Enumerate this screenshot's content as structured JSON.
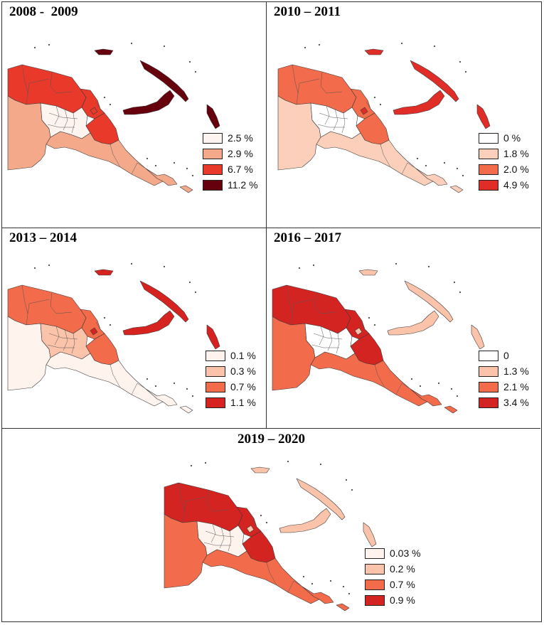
{
  "panels": [
    {
      "title": "2008 -  2009",
      "legend": [
        {
          "label": "2.5 %",
          "color": "#fdf3ef"
        },
        {
          "label": "2.9 %",
          "color": "#f4a98a"
        },
        {
          "label": "6.7 %",
          "color": "#e8392b"
        },
        {
          "label": "11.2 %",
          "color": "#67000d"
        }
      ],
      "regions": {
        "west": 2,
        "southwest": 1,
        "highlands": 0,
        "north": 2,
        "morobe": 2,
        "south": 1,
        "islands_west": 2,
        "new_britain": 3,
        "new_ireland": 3,
        "bougainville": 3,
        "manus": 3,
        "milne": 1
      }
    },
    {
      "title": "2010 – 2011",
      "legend": [
        {
          "label": "0 %",
          "color": "#ffffff"
        },
        {
          "label": "1.8 %",
          "color": "#fbcfba"
        },
        {
          "label": "2.0 %",
          "color": "#f26b4a"
        },
        {
          "label": "4.9 %",
          "color": "#e02d27"
        }
      ],
      "regions": {
        "west": 2,
        "southwest": 1,
        "highlands": 0,
        "north": 2,
        "morobe": 2,
        "south": 1,
        "islands_west": 3,
        "new_britain": 3,
        "new_ireland": 3,
        "bougainville": 3,
        "manus": 3,
        "milne": 1
      }
    },
    {
      "title": "2013 – 2014",
      "legend": [
        {
          "label": "0.1 %",
          "color": "#fff3ee"
        },
        {
          "label": "0.3 %",
          "color": "#fbc3a9"
        },
        {
          "label": "0.7 %",
          "color": "#f26b4a"
        },
        {
          "label": "1.1 %",
          "color": "#d7231f"
        }
      ],
      "regions": {
        "west": 2,
        "southwest": 0,
        "highlands": 1,
        "north": 2,
        "morobe": 2,
        "south": 0,
        "islands_west": 3,
        "new_britain": 3,
        "new_ireland": 3,
        "bougainville": 3,
        "manus": 3,
        "milne": 0
      }
    },
    {
      "title": "2016 – 2017",
      "legend": [
        {
          "label": "0",
          "color": "#ffffff"
        },
        {
          "label": "1.3 %",
          "color": "#fbc3a9"
        },
        {
          "label": "2.1 %",
          "color": "#f26b4a"
        },
        {
          "label": "3.4 %",
          "color": "#d42422"
        }
      ],
      "regions": {
        "west": 3,
        "southwest": 2,
        "highlands": 0,
        "north": 3,
        "morobe": 3,
        "south": 2,
        "islands_west": 1,
        "new_britain": 1,
        "new_ireland": 1,
        "bougainville": 1,
        "manus": 1,
        "milne": 2
      }
    },
    {
      "title": "2019 – 2020",
      "legend": [
        {
          "label": "0.03 %",
          "color": "#fff3ee"
        },
        {
          "label": "0.2 %",
          "color": "#fbc3a9"
        },
        {
          "label": "0.7 %",
          "color": "#f26b4a"
        },
        {
          "label": "0.9 %",
          "color": "#d42422"
        }
      ],
      "regions": {
        "west": 3,
        "southwest": 2,
        "highlands": 0,
        "north": 3,
        "morobe": 3,
        "south": 2,
        "islands_west": 1,
        "new_britain": 1,
        "new_ireland": 1,
        "bougainville": 1,
        "manus": 1,
        "milne": 2
      }
    }
  ]
}
